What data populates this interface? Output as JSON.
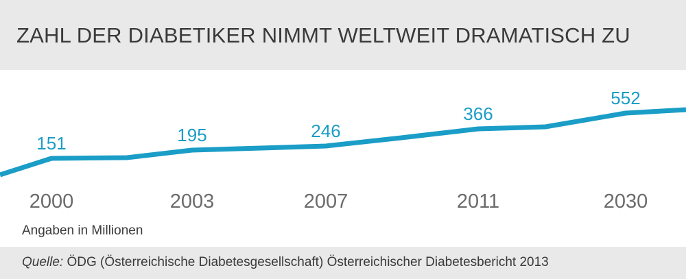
{
  "header": {
    "title": "ZAHL DER DIABETIKER NIMMT WELTWEIT DRAMATISCH ZU"
  },
  "note": "Angaben in Millionen",
  "source": {
    "label": "Quelle:",
    "text": "ÖDG (Österreichische Diabetesgesellschaft) Österreichischer Diabetesbericht 2013"
  },
  "colors": {
    "line": "#1a9dc6",
    "value_label": "#1a9dc6",
    "year_label": "#6b6b6b",
    "band": "#e9e9e9"
  },
  "chart_data": {
    "type": "line",
    "title": "ZAHL DER DIABETIKER NIMMT WELTWEIT DRAMATISCH ZU",
    "xlabel": "",
    "ylabel": "Angaben in Millionen",
    "categories": [
      "2000",
      "2003",
      "2007",
      "2011",
      "2030"
    ],
    "series": [
      {
        "values": [
          151,
          195,
          246,
          366,
          552
        ]
      }
    ],
    "grid": false,
    "legend": "none"
  }
}
